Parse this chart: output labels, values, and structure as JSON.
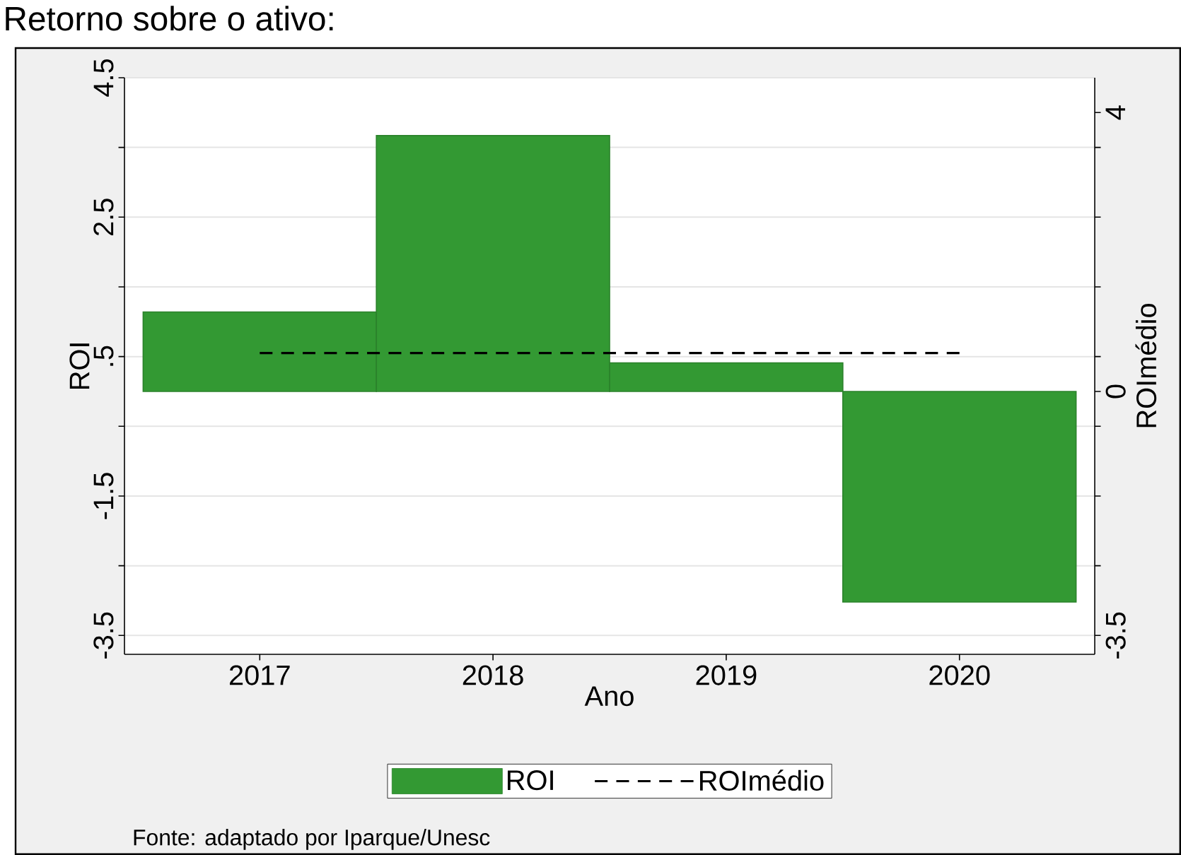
{
  "chart_data": {
    "type": "bar",
    "title": "Retorno sobre o ativo:",
    "xlabel": "Ano",
    "ylabel": "ROI",
    "y2label": "ROImédio",
    "series": [
      {
        "name": "ROI",
        "type": "bar",
        "color": "#339933",
        "x": [
          2017,
          2018,
          2019,
          2020
        ],
        "values": [
          1.14,
          3.67,
          0.41,
          -3.02
        ]
      },
      {
        "name": "ROImédio",
        "type": "line",
        "axis": "y2",
        "color": "#000000",
        "line_style": "dashed",
        "x": [
          2017,
          2020
        ],
        "values": [
          0.55,
          0.55
        ]
      }
    ],
    "xlim": [
      2016.42,
      2020.58
    ],
    "xticks": [
      2017,
      2018,
      2019,
      2020
    ],
    "ylim": [
      -3.77,
      4.5
    ],
    "yticks": [
      4.5,
      {
        "value": 3.5,
        "label": null
      },
      2.5,
      {
        "value": 1.5,
        "label": null
      },
      {
        "value": 0.5,
        "label": ".5"
      },
      {
        "value": -0.5,
        "label": null
      },
      -1.5,
      {
        "value": -2.5,
        "label": null
      },
      -3.5
    ],
    "y2lim": [
      -3.77,
      4.5
    ],
    "y2ticks": [
      4,
      {
        "value": 3.5,
        "label": null
      },
      {
        "value": 2.5,
        "label": null
      },
      {
        "value": 1.5,
        "label": null
      },
      {
        "value": 0.5,
        "label": null
      },
      0,
      {
        "value": -0.5,
        "label": null
      },
      {
        "value": -1.5,
        "label": null
      },
      {
        "value": -2.5,
        "label": null
      },
      -3.5
    ],
    "grid": "y",
    "legend": "bottom",
    "annotations": [
      "Fonte: adaptado por Iparque/Unesc"
    ]
  }
}
